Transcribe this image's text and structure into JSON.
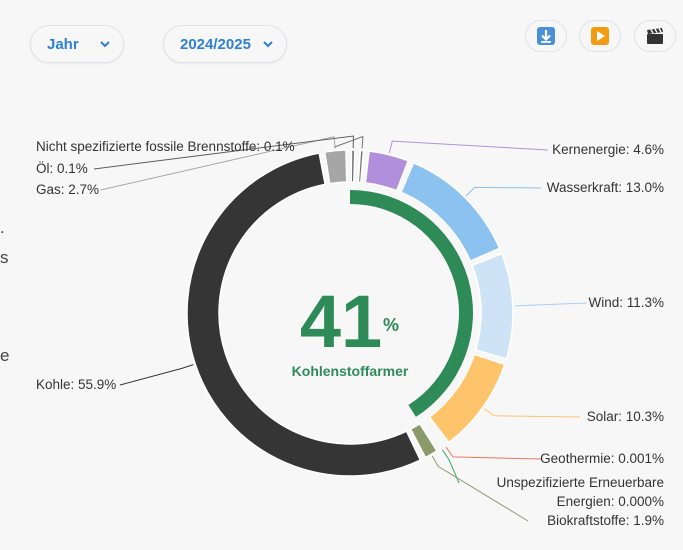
{
  "controls": {
    "period": "Jahr",
    "year": "2024/2025",
    "icons": [
      "download-icon",
      "play-icon",
      "clapper-icon"
    ]
  },
  "clipped_text": [
    ".",
    "s",
    "e"
  ],
  "center": {
    "value": "41",
    "unit": "%",
    "label": "Kohlenstoffarmer"
  },
  "chart_data": {
    "type": "donut",
    "series": [
      {
        "name": "Kernenergie",
        "value": 4.6,
        "label": "Kernenergie: 4.6%",
        "color": "#b28fdc"
      },
      {
        "name": "Wasserkraft",
        "value": 13.0,
        "label": "Wasserkraft: 13.0%",
        "color": "#8bc2ef"
      },
      {
        "name": "Wind",
        "value": 11.3,
        "label": "Wind: 11.3%",
        "color": "#cfe3f7"
      },
      {
        "name": "Solar",
        "value": 10.3,
        "label": "Solar: 10.3%",
        "color": "#fec46c"
      },
      {
        "name": "Geothermie",
        "value": 0.001,
        "label": "Geothermie: 0.001%",
        "color": "#e8785a"
      },
      {
        "name": "Unspezifizierte Erneuerbare Energien",
        "value": 0.0,
        "label": "Unspezifizierte Erneuerbare Energien: 0.000%",
        "label_lines": [
          "Unspezifizierte Erneuerbare",
          "Energien: 0.000%"
        ],
        "color": "#3aa66b"
      },
      {
        "name": "Biokraftstoffe",
        "value": 1.9,
        "label": "Biokraftstoffe: 1.9%",
        "color": "#8a9a6a"
      },
      {
        "name": "Kohle",
        "value": 55.9,
        "label": "Kohle: 55.9%",
        "color": "#353535"
      },
      {
        "name": "Gas",
        "value": 2.7,
        "label": "Gas: 2.7%",
        "color": "#a6a6a6"
      },
      {
        "name": "Öl",
        "value": 0.1,
        "label": "Öl: 0.1%",
        "color": "#5c5c5c"
      },
      {
        "name": "Nicht spezifizierte fossile Brennstoffe",
        "value": 0.1,
        "label": "Nicht spezifizierte fossile Brennstoffe: 0.1%",
        "color": "#777777"
      }
    ],
    "inner_ring": {
      "name": "Kohlenstoffarm",
      "value": 41,
      "color": "#2e8b57"
    }
  }
}
